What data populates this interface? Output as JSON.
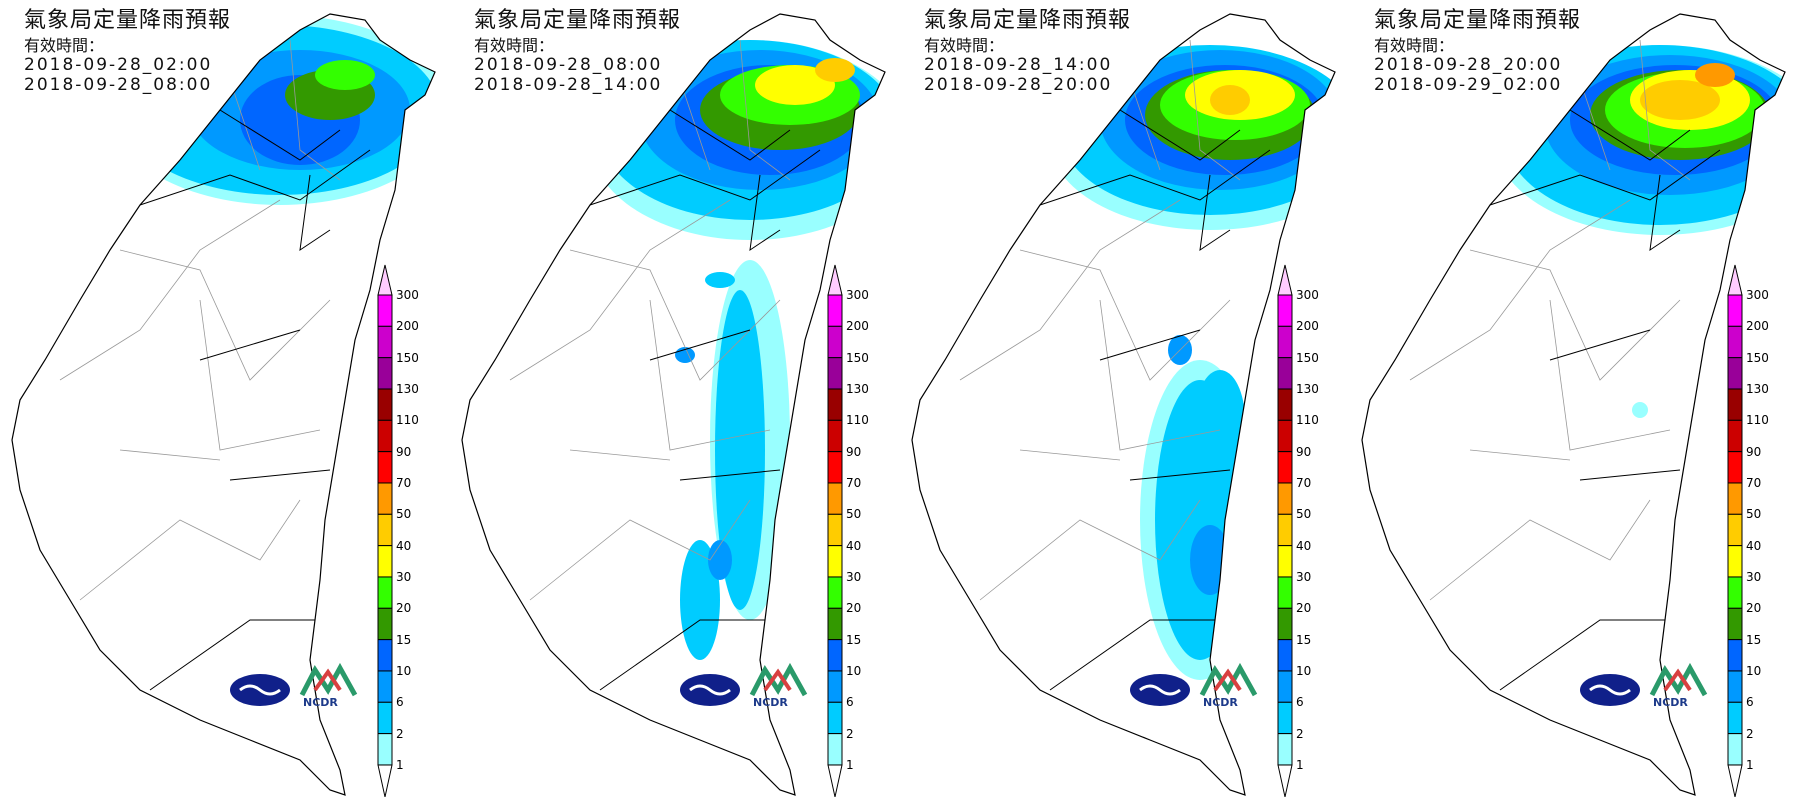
{
  "panels": [
    {
      "title": "氣象局定量降雨預報",
      "valid_label": "有效時間：",
      "start": "2018-09-28_02:00",
      "end": "2018-09-28_08:00"
    },
    {
      "title": "氣象局定量降雨預報",
      "valid_label": "有效時間：",
      "start": "2018-09-28_08:00",
      "end": "2018-09-28_14:00"
    },
    {
      "title": "氣象局定量降雨預報",
      "valid_label": "有效時間：",
      "start": "2018-09-28_14:00",
      "end": "2018-09-28_20:00"
    },
    {
      "title": "氣象局定量降雨預報",
      "valid_label": "有效時間：",
      "start": "2018-09-28_20:00",
      "end": "2018-09-29_02:00"
    }
  ],
  "colorbar": {
    "labels": [
      "300",
      "200",
      "150",
      "130",
      "110",
      "90",
      "70",
      "50",
      "40",
      "30",
      "20",
      "15",
      "10",
      "6",
      "2",
      "1"
    ],
    "colors": [
      "#ff00ff",
      "#cc00cc",
      "#990099",
      "#990000",
      "#cc0000",
      "#ff0000",
      "#ff9900",
      "#ffcc00",
      "#ffff00",
      "#33ff00",
      "#339900",
      "#0066ff",
      "#0099ff",
      "#00ccff",
      "#99ffff"
    ],
    "over_color": "#ffccff",
    "under_color": "#ffffff"
  },
  "logos": {
    "cwb": "CWB",
    "ncdr": "NCDR"
  }
}
